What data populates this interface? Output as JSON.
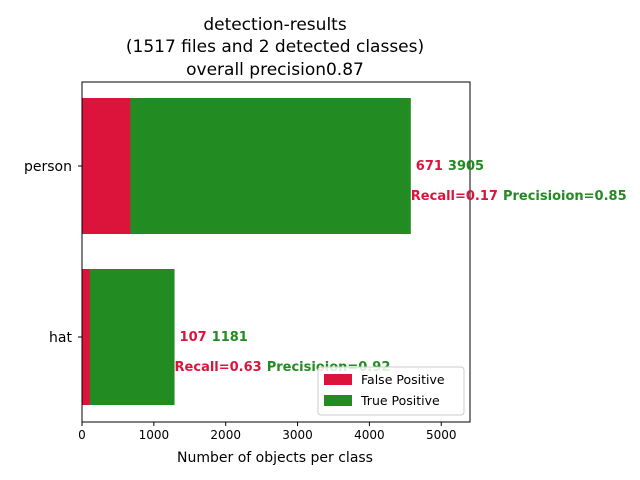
{
  "chart_data": {
    "type": "bar",
    "orientation": "horizontal",
    "stacked": true,
    "title_lines": [
      "detection-results",
      "(1517 files and 2 detected classes)",
      "overall precision0.87"
    ],
    "xlabel": "Number of objects per class",
    "ylabel": "",
    "xlim": [
      0,
      5400
    ],
    "xticks": [
      0,
      1000,
      2000,
      3000,
      4000,
      5000
    ],
    "xtick_labels": [
      "0",
      "1000",
      "2000",
      "3000",
      "4000",
      "5000"
    ],
    "categories": [
      "person",
      "hat"
    ],
    "series": [
      {
        "name": "False Positive",
        "color": "#dc143c",
        "values": [
          671,
          107
        ]
      },
      {
        "name": "True Positive",
        "color": "#228b22",
        "values": [
          3905,
          1181
        ]
      }
    ],
    "annotations": [
      {
        "category": "person",
        "fp_text": "671",
        "tp_text": "3905",
        "recall_text": "Recall=0.17",
        "precision_text": "Precisioion=0.85"
      },
      {
        "category": "hat",
        "fp_text": "107",
        "tp_text": "1181",
        "recall_text": "Recall=0.63",
        "precision_text": "Precisioion=0.92"
      }
    ],
    "legend": {
      "position": "lower-right",
      "entries": [
        "False Positive",
        "True Positive"
      ]
    },
    "grid": false
  }
}
